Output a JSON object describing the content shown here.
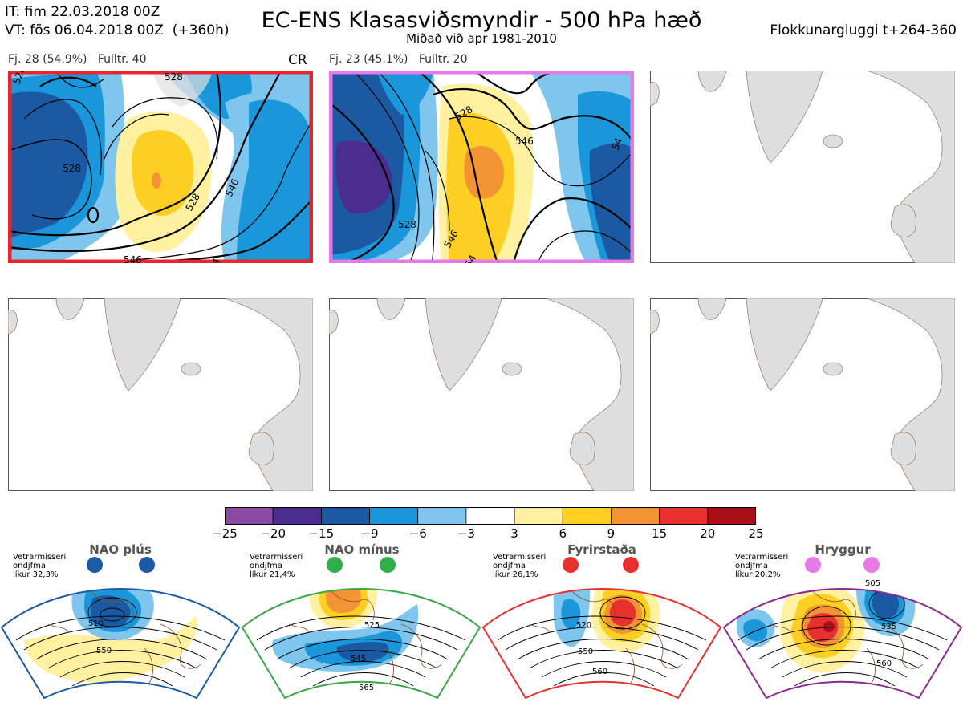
{
  "header": {
    "line1": "IT: fim 22.03.2018 00Z",
    "line2": "VT: fös 06.04.2018 00Z  (+360h)",
    "title": "EC-ENS Klasasviðsmyndir - 500 hPa hæð",
    "subtitle": "Miðað við apr 1981-2010",
    "right": "Flokkunargluggi t+264-360"
  },
  "clusters": [
    {
      "label": "Fj. 28 (54.9%)   Fulltr. 40",
      "regime_tag": "CR",
      "border_color": "#e8262b",
      "contour_labels": [
        "528",
        "528",
        "528",
        "528",
        "546",
        "546",
        "54"
      ]
    },
    {
      "label": "Fj. 23 (45.1%)   Fulltr. 20",
      "border_color": "#e77ae8",
      "contour_labels": [
        "528",
        "546",
        "528",
        "546",
        "54",
        "54"
      ]
    }
  ],
  "empty_panels": 4,
  "colorbar": {
    "ticks": [
      "−25",
      "−20",
      "−15",
      "−9",
      "−6",
      "−3",
      "3",
      "6",
      "9",
      "15",
      "20",
      "25"
    ],
    "colors": [
      "#8b4aa1",
      "#4b2d8f",
      "#1b5aa3",
      "#1a96da",
      "#7fc6ee",
      "#ffffff",
      "#fff1a0",
      "#fccf22",
      "#f39434",
      "#e8302e",
      "#a80f16"
    ]
  },
  "regimes": [
    {
      "name": "NAO plús",
      "note": "Vetrarmisseri\nondjfma\nlíkur 32,3%",
      "color": "#1c5aa6",
      "dot_color": "#1c5aa6",
      "contours": [
        "510",
        "550"
      ]
    },
    {
      "name": "NAO mínus",
      "note": "Vetrarmisseri\nondjfma\nlíkur 21,4%",
      "color": "#3aa64a",
      "dot_color": "#2fae4a",
      "contours": [
        "525",
        "545",
        "565"
      ]
    },
    {
      "name": "Fyrirstaða",
      "note": "Vetrarmisseri\nondjfma\nlíkur 26,1%",
      "color": "#e8302e",
      "dot_color": "#e8302e",
      "contours": [
        "520",
        "550",
        "560"
      ]
    },
    {
      "name": "Hryggur",
      "note": "Vetrarmisseri\nondjfma\nlíkur 20,2%",
      "color": "#8b2a8f",
      "dot_color": "#e87ae8",
      "contours": [
        "505",
        "535",
        "560"
      ]
    }
  ]
}
